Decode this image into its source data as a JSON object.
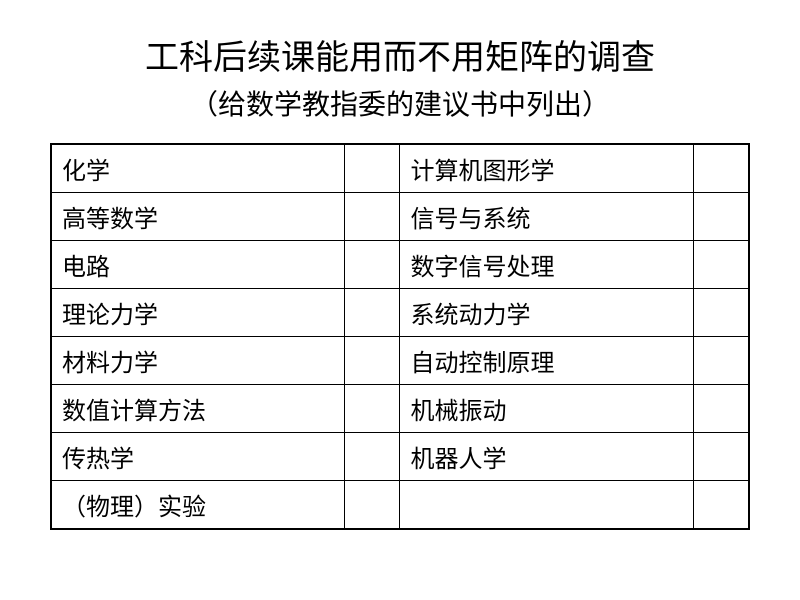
{
  "title": "工科后续课能用而不用矩阵的调查",
  "subtitle": "（给数学教指委的建议书中列出）",
  "table": {
    "type": "table",
    "background_color": "#ffffff",
    "border_color": "#000000",
    "text_color": "#000000",
    "cell_fontsize": 24,
    "title_fontsize": 34,
    "subtitle_fontsize": 28,
    "column_widths": [
      "42%",
      "8%",
      "42%",
      "8%"
    ],
    "rows": [
      [
        "化学",
        "",
        "计算机图形学",
        ""
      ],
      [
        "高等数学",
        "",
        "信号与系统",
        ""
      ],
      [
        "电路",
        "",
        "数字信号处理",
        ""
      ],
      [
        "理论力学",
        "",
        "系统动力学",
        ""
      ],
      [
        "材料力学",
        "",
        "自动控制原理",
        ""
      ],
      [
        "数值计算方法",
        "",
        "机械振动",
        ""
      ],
      [
        "传热学",
        "",
        "机器人学",
        ""
      ],
      [
        "（物理）实验",
        "",
        "",
        ""
      ]
    ]
  }
}
